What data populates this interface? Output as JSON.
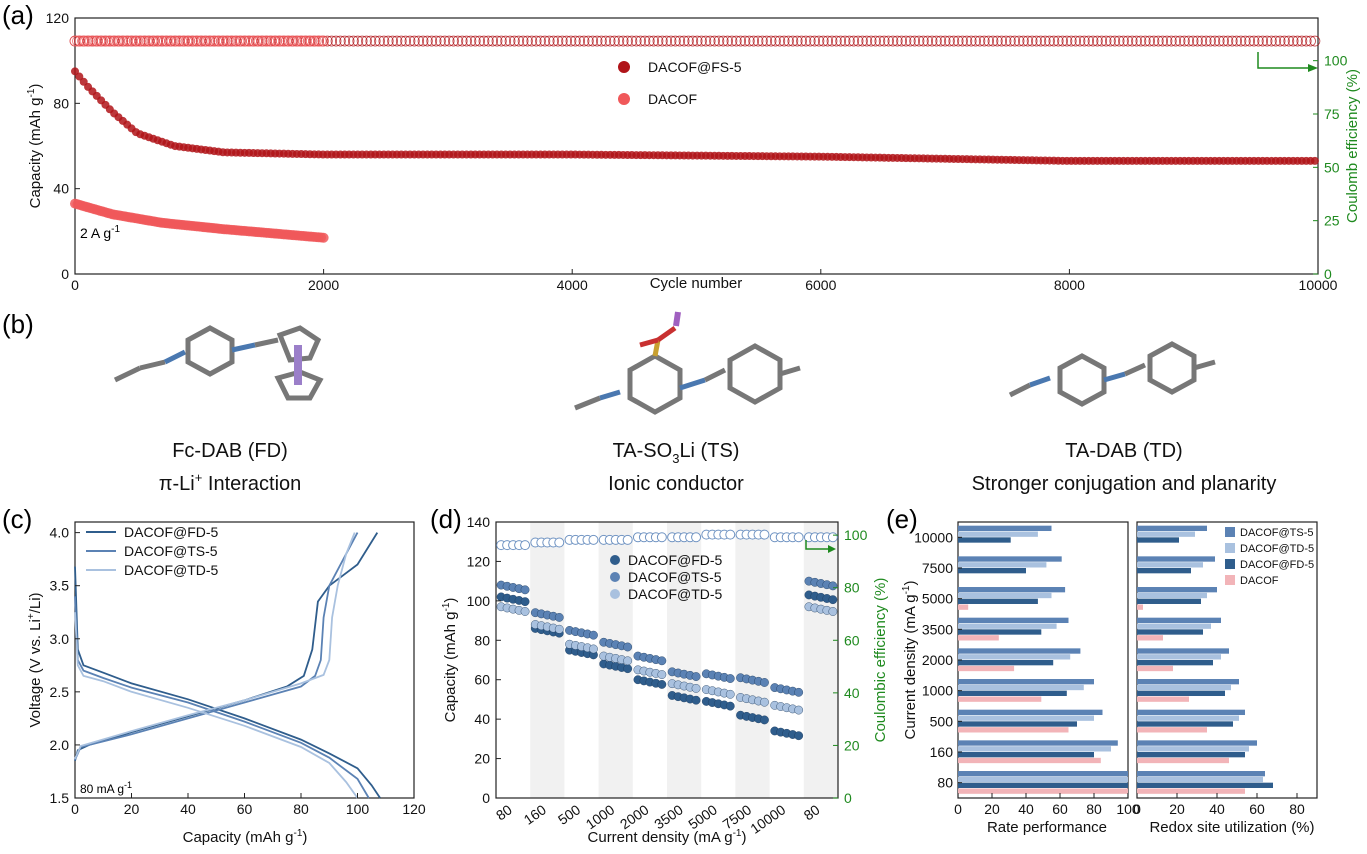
{
  "panel_labels": {
    "a": "(a)",
    "b": "(b)",
    "c": "(c)",
    "d": "(d)",
    "e": "(e)"
  },
  "colors": {
    "fs5": "#b01419",
    "dacof_a": "#f0585a",
    "green": "#1f8a1f",
    "red_text": "#cc1f1f",
    "fd": "#2f5d8c",
    "ts": "#5b82b4",
    "td": "#a9c1df",
    "dacof_e": "#f2b4b8"
  },
  "chart_data": [
    {
      "panel": "a",
      "type": "scatter",
      "xlabel": "Cycle number",
      "ylabel": "Capacity (mAh g",
      "ylabel_sup": "-1",
      "ylabel_end": ")",
      "y2label": "Coulomb efficiency (%)",
      "xlim": [
        0,
        10000
      ],
      "ylim": [
        0,
        120
      ],
      "y2lim": [
        0,
        120
      ],
      "xticks": [
        "0",
        "2000",
        "4000",
        "6000",
        "8000",
        "10000"
      ],
      "yticks": [
        "0",
        "40",
        "80",
        "120"
      ],
      "y2ticks": [
        "0",
        "25",
        "50",
        "75",
        "100"
      ],
      "annotation": "2 A g",
      "annotation_sup": "-1",
      "series": [
        {
          "name": "DACOF@FS-5",
          "capacity": [
            [
              0,
              95
            ],
            [
              100,
              88
            ],
            [
              300,
              76
            ],
            [
              500,
              66
            ],
            [
              800,
              60
            ],
            [
              1200,
              57
            ],
            [
              2000,
              56
            ],
            [
              4000,
              56
            ],
            [
              6000,
              55
            ],
            [
              8000,
              53
            ],
            [
              8500,
              53
            ],
            [
              10000,
              53
            ]
          ],
          "ce": [
            [
              0,
              110
            ],
            [
              10000,
              110
            ]
          ]
        },
        {
          "name": "DACOF",
          "capacity": [
            [
              0,
              33
            ],
            [
              300,
              28
            ],
            [
              700,
              24
            ],
            [
              1200,
              21
            ],
            [
              1600,
              19
            ],
            [
              2000,
              17
            ]
          ],
          "ce": [
            [
              0,
              110
            ],
            [
              2000,
              110
            ]
          ]
        }
      ]
    },
    {
      "panel": "c",
      "type": "line",
      "xlabel": "Capacity (mAh g",
      "xlabel_sup": "-1",
      "xlabel_end": ")",
      "ylabel": "Voltage (V vs. Li",
      "ylabel_sup": "+",
      "ylabel_end": "/Li)",
      "xlim": [
        0,
        120
      ],
      "ylim": [
        1.5,
        4.1
      ],
      "xticks": [
        "0",
        "20",
        "40",
        "60",
        "80",
        "100",
        "120"
      ],
      "yticks": [
        "1.5",
        "2.0",
        "2.5",
        "3.0",
        "3.5",
        "4.0"
      ],
      "annotation": "80 mA g",
      "annotation_sup": "-1",
      "series": [
        {
          "name": "DACOF@FD-5",
          "discharge": [
            [
              0,
              3.68
            ],
            [
              1,
              2.9
            ],
            [
              3,
              2.75
            ],
            [
              10,
              2.68
            ],
            [
              20,
              2.58
            ],
            [
              40,
              2.43
            ],
            [
              60,
              2.25
            ],
            [
              80,
              2.05
            ],
            [
              90,
              1.92
            ],
            [
              100,
              1.78
            ],
            [
              105,
              1.62
            ],
            [
              108,
              1.5
            ]
          ],
          "charge": [
            [
              0,
              1.85
            ],
            [
              1,
              1.95
            ],
            [
              5,
              2.0
            ],
            [
              20,
              2.12
            ],
            [
              40,
              2.27
            ],
            [
              60,
              2.42
            ],
            [
              75,
              2.55
            ],
            [
              81,
              2.65
            ],
            [
              84,
              2.9
            ],
            [
              86,
              3.35
            ],
            [
              90,
              3.5
            ],
            [
              100,
              3.7
            ],
            [
              107,
              4.0
            ]
          ]
        },
        {
          "name": "DACOF@TS-5",
          "discharge": [
            [
              0,
              3.4
            ],
            [
              1,
              2.8
            ],
            [
              3,
              2.7
            ],
            [
              10,
              2.63
            ],
            [
              20,
              2.54
            ],
            [
              40,
              2.4
            ],
            [
              60,
              2.22
            ],
            [
              80,
              2.02
            ],
            [
              90,
              1.88
            ],
            [
              100,
              1.68
            ],
            [
              104,
              1.5
            ]
          ],
          "charge": [
            [
              0,
              1.86
            ],
            [
              2,
              1.98
            ],
            [
              20,
              2.1
            ],
            [
              40,
              2.25
            ],
            [
              60,
              2.4
            ],
            [
              80,
              2.55
            ],
            [
              85,
              2.65
            ],
            [
              87,
              2.8
            ],
            [
              88,
              3.2
            ],
            [
              90,
              3.5
            ],
            [
              96,
              3.8
            ],
            [
              100,
              4.0
            ]
          ]
        },
        {
          "name": "DACOF@TD-5",
          "discharge": [
            [
              0,
              3.25
            ],
            [
              1,
              2.75
            ],
            [
              3,
              2.65
            ],
            [
              10,
              2.6
            ],
            [
              20,
              2.5
            ],
            [
              40,
              2.35
            ],
            [
              60,
              2.18
            ],
            [
              80,
              1.98
            ],
            [
              90,
              1.83
            ],
            [
              96,
              1.65
            ],
            [
              100,
              1.5
            ]
          ],
          "charge": [
            [
              0,
              1.87
            ],
            [
              2,
              1.99
            ],
            [
              20,
              2.13
            ],
            [
              40,
              2.28
            ],
            [
              60,
              2.42
            ],
            [
              80,
              2.58
            ],
            [
              88,
              2.66
            ],
            [
              90,
              2.8
            ],
            [
              91,
              3.2
            ],
            [
              93,
              3.5
            ],
            [
              96,
              3.8
            ],
            [
              99,
              4.0
            ]
          ]
        }
      ]
    },
    {
      "panel": "d",
      "type": "scatter",
      "xlabel": "Current density (mA g",
      "xlabel_sup": "-1",
      "xlabel_end": ")",
      "ylabel": "Capacity (mAh g",
      "ylabel_sup": "-1",
      "ylabel_end": ")",
      "y2label": "Coulombic efficiency (%)",
      "ylim": [
        0,
        140
      ],
      "y2lim": [
        0,
        105
      ],
      "categories": [
        "80",
        "160",
        "500",
        "1000",
        "2000",
        "3500",
        "5000",
        "7500",
        "10000",
        "80"
      ],
      "yticks": [
        "0",
        "20",
        "40",
        "60",
        "80",
        "100",
        "120",
        "140"
      ],
      "y2ticks": [
        "0",
        "20",
        "40",
        "60",
        "80",
        "100"
      ],
      "series": [
        {
          "name": "DACOF@FD-5",
          "values": [
            102,
            86,
            75,
            68,
            60,
            52,
            49,
            42,
            34,
            103
          ]
        },
        {
          "name": "DACOF@TS-5",
          "values": [
            108,
            94,
            85,
            79,
            72,
            64,
            63,
            61,
            56,
            110
          ]
        },
        {
          "name": "DACOF@TD-5",
          "values": [
            97,
            88,
            78,
            72,
            65,
            58,
            55,
            51,
            47,
            97
          ]
        }
      ],
      "ce_percent": [
        97,
        98,
        99,
        99,
        100,
        100,
        101,
        101,
        100,
        100
      ]
    },
    {
      "panel": "e",
      "type": "bar",
      "orientation": "horizontal",
      "ylabel": "Current density (mA g",
      "ylabel_sup": "-1",
      "ylabel_end": ")",
      "xlabel_left": "Rate performance",
      "xlabel_right": "Redox site utilization (%)",
      "categories": [
        "80",
        "160",
        "500",
        "1000",
        "2000",
        "3500",
        "5000",
        "7500",
        "10000"
      ],
      "xlim_left": [
        0,
        100
      ],
      "xlim_right": [
        0,
        90
      ],
      "xticks_left": [
        "0",
        "20",
        "40",
        "60",
        "80",
        "100"
      ],
      "xticks_right": [
        "0",
        "20",
        "40",
        "60",
        "80"
      ],
      "legend": [
        "DACOF@TS-5",
        "DACOF@TD-5",
        "DACOF@FD-5",
        "DACOF"
      ],
      "rate_performance": [
        {
          "name": "DACOF@TS-5",
          "values": [
            100,
            94,
            85,
            80,
            72,
            65,
            63,
            61,
            55
          ]
        },
        {
          "name": "DACOF@TD-5",
          "values": [
            100,
            90,
            80,
            74,
            66,
            58,
            55,
            52,
            47
          ]
        },
        {
          "name": "DACOF@FD-5",
          "values": [
            100,
            80,
            70,
            64,
            56,
            49,
            47,
            40,
            31
          ]
        },
        {
          "name": "DACOF",
          "values": [
            100,
            84,
            65,
            49,
            33,
            24,
            6,
            0,
            0
          ]
        }
      ],
      "redox_utilization": [
        {
          "name": "DACOF@TS-5",
          "values": [
            64,
            60,
            54,
            51,
            46,
            42,
            40,
            39,
            35
          ]
        },
        {
          "name": "DACOF@TD-5",
          "values": [
            63,
            56,
            51,
            47,
            42,
            37,
            35,
            33,
            29
          ]
        },
        {
          "name": "DACOF@FD-5",
          "values": [
            68,
            54,
            48,
            44,
            38,
            33,
            32,
            27,
            21
          ]
        },
        {
          "name": "DACOF",
          "values": [
            54,
            46,
            35,
            26,
            18,
            13,
            3,
            0,
            0
          ]
        }
      ]
    }
  ],
  "panel_b": {
    "molecules": [
      {
        "name": "Fc-DAB (FD)",
        "property": "π-Li",
        "property_sup": "+",
        "property_end": " Interaction"
      },
      {
        "name_pre": "TA-SO",
        "name_sub": "3",
        "name_post": "Li (TS)",
        "property": "Ionic conductor"
      },
      {
        "name": "TA-DAB (TD)",
        "property": "Stronger conjugation and planarity"
      }
    ]
  }
}
